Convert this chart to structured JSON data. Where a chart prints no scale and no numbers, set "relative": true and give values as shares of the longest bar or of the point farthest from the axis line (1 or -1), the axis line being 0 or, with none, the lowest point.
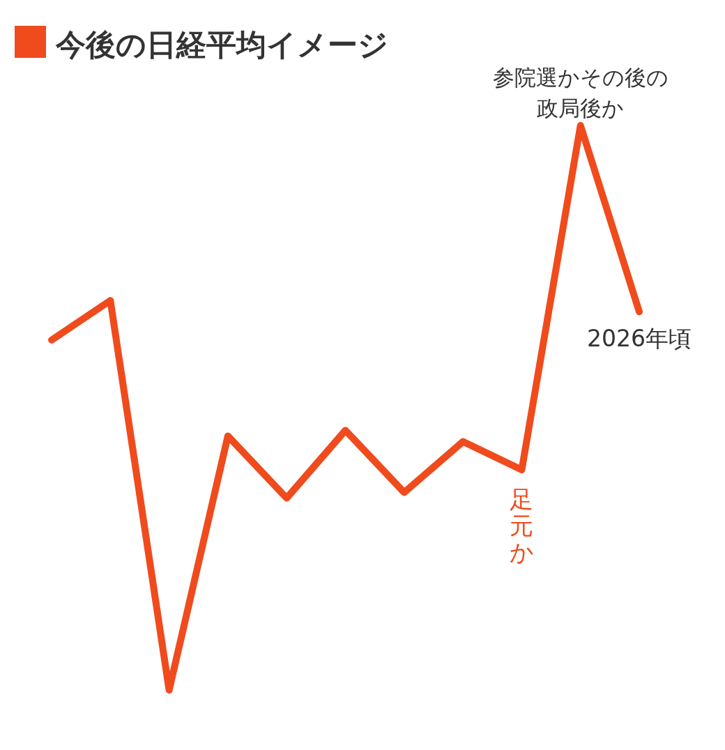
{
  "chart_data": {
    "type": "line",
    "title": "今後の日経平均イメージ",
    "relative": true,
    "categories": [
      null,
      null,
      null,
      null,
      null,
      null,
      null,
      null,
      null,
      null,
      null
    ],
    "series": [
      {
        "color": "#f04b1d",
        "values": [
          0.62,
          0.69,
          0,
          0.45,
          0.34,
          0.46,
          0.35,
          0.44,
          0.39,
          1,
          0.67
        ]
      }
    ],
    "annotations": [
      "参院選かその後の政局後か",
      "足元か",
      "2026年頃"
    ]
  }
}
